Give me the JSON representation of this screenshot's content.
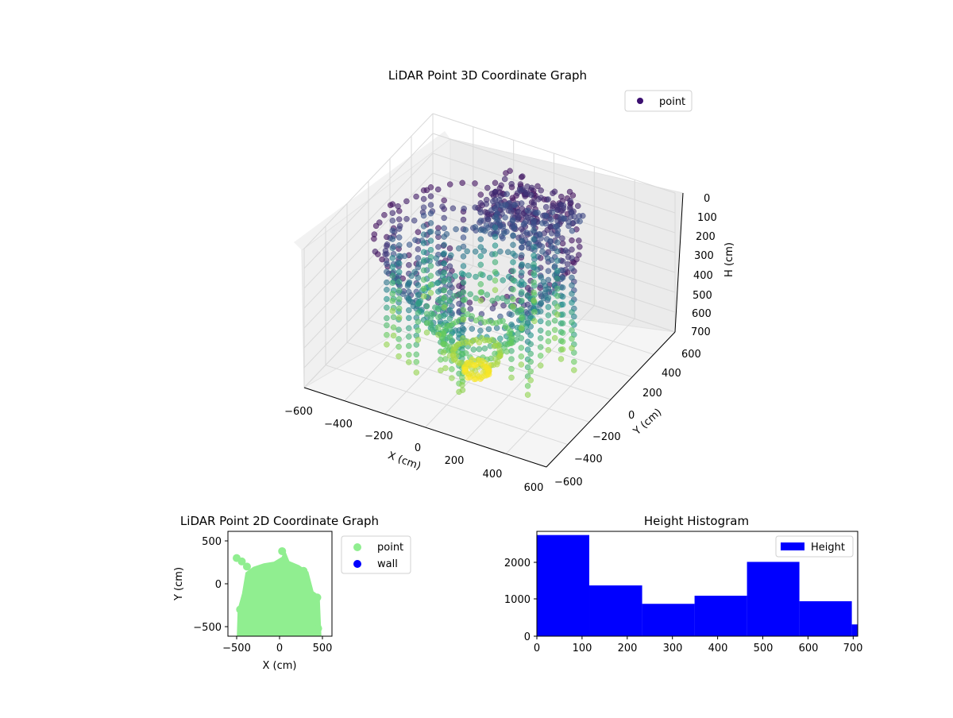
{
  "figure": {
    "chart3d": {
      "title": "LiDAR Point 3D Coordinate Graph",
      "legend": "point",
      "xlabel": "X (cm)",
      "ylabel": "Y (cm)",
      "zlabel": "H (cm)",
      "xticks": [
        "−600",
        "−400",
        "−200",
        "0",
        "200",
        "400",
        "600"
      ],
      "yticks": [
        "600",
        "400",
        "200",
        "0",
        "−200",
        "−400",
        "−600"
      ],
      "zticks": [
        "0",
        "100",
        "200",
        "300",
        "400",
        "500",
        "600",
        "700"
      ]
    },
    "chart2d": {
      "title": "LiDAR Point 2D Coordinate Graph",
      "xlabel": "X (cm)",
      "ylabel": "Y (cm)",
      "xticks": [
        "−500",
        "0",
        "500"
      ],
      "yticks": [
        "500",
        "0",
        "−500"
      ],
      "legend": [
        "point",
        "wall"
      ]
    },
    "hist": {
      "title": "Height Histogram",
      "legend": "Height",
      "xticks": [
        "0",
        "100",
        "200",
        "300",
        "400",
        "500",
        "600",
        "700"
      ],
      "yticks": [
        "2000",
        "1000",
        "0"
      ]
    }
  },
  "chart_data": [
    {
      "type": "scatter",
      "title": "LiDAR Point 3D Coordinate Graph",
      "xlabel": "X (cm)",
      "ylabel": "Y (cm)",
      "zlabel": "H (cm)",
      "xlim": [
        -600,
        600
      ],
      "ylim": [
        -600,
        600
      ],
      "zlim": [
        700,
        0
      ],
      "colormap": "viridis",
      "series": [
        {
          "name": "point",
          "color": "#3b0f70"
        }
      ],
      "legend_position": "top-right",
      "grid": true
    },
    {
      "type": "scatter",
      "title": "LiDAR Point 2D Coordinate Graph",
      "xlabel": "X (cm)",
      "ylabel": "Y (cm)",
      "xlim": [
        -600,
        600
      ],
      "ylim": [
        -620,
        620
      ],
      "series": [
        {
          "name": "point",
          "color": "#90ee90"
        },
        {
          "name": "wall",
          "color": "#0000ff"
        }
      ],
      "legend_position": "outside-right"
    },
    {
      "type": "bar",
      "title": "Height Histogram",
      "bin_edges": [
        0,
        116,
        233,
        349,
        465,
        581,
        697,
        720
      ],
      "values": [
        2750,
        1380,
        880,
        1100,
        2020,
        950,
        320
      ],
      "xlim": [
        0,
        710
      ],
      "ylim": [
        0,
        2850
      ],
      "series": [
        {
          "name": "Height",
          "color": "#0000ff"
        }
      ],
      "legend_position": "top-right"
    }
  ]
}
